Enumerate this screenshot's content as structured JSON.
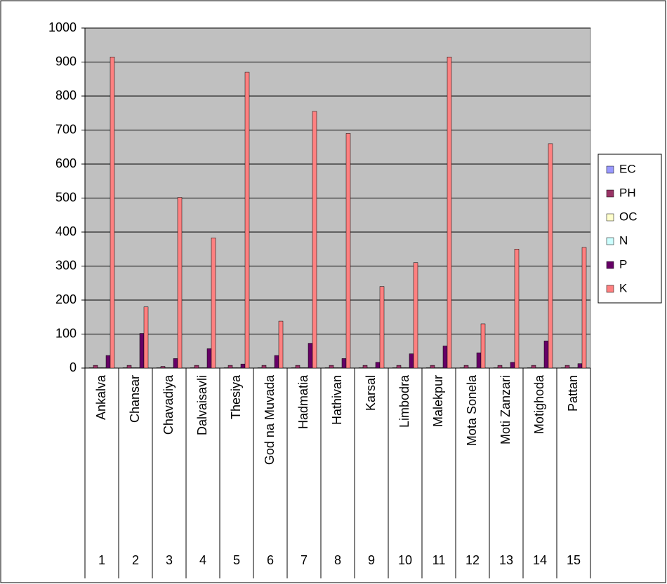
{
  "chart_data": {
    "type": "bar",
    "categories": [
      "Ankalva",
      "Chansar",
      "Chavadiya",
      "Dalvaisavli",
      "Thesiya",
      "God na Muvada",
      "Hadmatia",
      "Hathivan",
      "Karsal",
      "Limbodra",
      "Malekpur",
      "Mota Sonela",
      "Moti Zanzari",
      "Motighoda",
      "Pattan"
    ],
    "category_numbers": [
      1,
      2,
      3,
      4,
      5,
      6,
      7,
      8,
      9,
      10,
      11,
      12,
      13,
      14,
      15
    ],
    "series": [
      {
        "name": "EC",
        "color": "#9999ff",
        "values": [
          1,
          1,
          1,
          1,
          1,
          1,
          1,
          1,
          1,
          1,
          1,
          1,
          1,
          1,
          1
        ]
      },
      {
        "name": "PH",
        "color": "#993366",
        "values": [
          8,
          8,
          5,
          8,
          8,
          8,
          8,
          8,
          8,
          8,
          8,
          8,
          8,
          8,
          8
        ]
      },
      {
        "name": "OC",
        "color": "#ffffcc",
        "values": [
          1,
          1,
          1,
          1,
          1,
          1,
          1,
          1,
          1,
          1,
          1,
          1,
          1,
          1,
          1
        ]
      },
      {
        "name": "N",
        "color": "#ccffff",
        "values": [
          1,
          1,
          1,
          1,
          1,
          1,
          1,
          1,
          1,
          1,
          1,
          1,
          1,
          1,
          1
        ]
      },
      {
        "name": "P",
        "color": "#660066",
        "values": [
          37,
          102,
          28,
          57,
          12,
          37,
          73,
          28,
          17,
          42,
          65,
          45,
          17,
          80,
          13
        ]
      },
      {
        "name": "K",
        "color": "#ff8080",
        "values": [
          915,
          180,
          502,
          383,
          870,
          138,
          755,
          690,
          240,
          310,
          915,
          130,
          350,
          660,
          355
        ]
      }
    ],
    "ylim": [
      0,
      1000
    ],
    "yticks": [
      0,
      100,
      200,
      300,
      400,
      500,
      600,
      700,
      800,
      900,
      1000
    ],
    "grid": true,
    "legend": "right"
  }
}
